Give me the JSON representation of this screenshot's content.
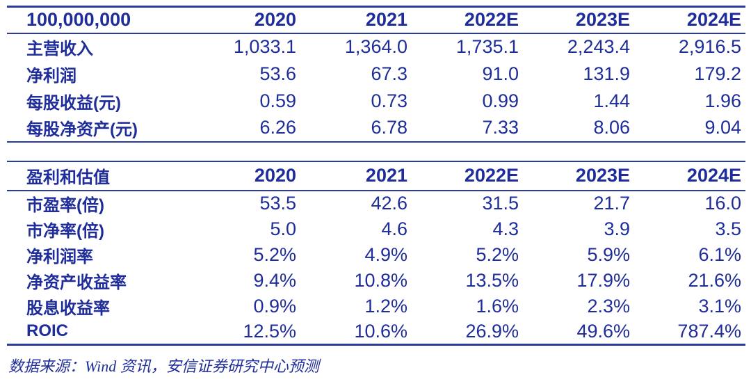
{
  "theme": {
    "text_color": "#1F2D9B",
    "line_color": "#2B3AA0",
    "background_color": "#FFFFFF"
  },
  "tables": [
    {
      "name": "financial-summary-units",
      "unit_label": "100,000,000",
      "header": [
        "100,000,000",
        "2020",
        "2021",
        "2022E",
        "2023E",
        "2024E"
      ],
      "rows": [
        {
          "label": "主营收入",
          "values": [
            "1,033.1",
            "1,364.0",
            "1,735.1",
            "2,243.4",
            "2,916.5"
          ]
        },
        {
          "label": "净利润",
          "values": [
            "53.6",
            "67.3",
            "91.0",
            "131.9",
            "179.2"
          ]
        },
        {
          "label": "每股收益(元)",
          "values": [
            "0.59",
            "0.73",
            "0.99",
            "1.44",
            "1.96"
          ]
        },
        {
          "label": "每股净资产(元)",
          "values": [
            "6.26",
            "6.78",
            "7.33",
            "8.06",
            "9.04"
          ]
        }
      ]
    },
    {
      "name": "profitability-and-valuation",
      "unit_label": "盈利和估值",
      "header": [
        "盈利和估值",
        "2020",
        "2021",
        "2022E",
        "2023E",
        "2024E"
      ],
      "rows": [
        {
          "label": "市盈率(倍)",
          "values": [
            "53.5",
            "42.6",
            "31.5",
            "21.7",
            "16.0"
          ]
        },
        {
          "label": "市净率(倍)",
          "values": [
            "5.0",
            "4.6",
            "4.3",
            "3.9",
            "3.5"
          ]
        },
        {
          "label": "净利润率",
          "values": [
            "5.2%",
            "4.9%",
            "5.2%",
            "5.9%",
            "6.1%"
          ]
        },
        {
          "label": "净资产收益率",
          "values": [
            "9.4%",
            "10.8%",
            "13.5%",
            "17.9%",
            "21.6%"
          ]
        },
        {
          "label": "股息收益率",
          "values": [
            "0.9%",
            "1.2%",
            "1.6%",
            "2.3%",
            "3.1%"
          ]
        },
        {
          "label": "ROIC",
          "values": [
            "12.5%",
            "10.6%",
            "26.9%",
            "49.6%",
            "787.4%"
          ]
        }
      ]
    }
  ],
  "footer": {
    "source_note": "数据来源：Wind 资讯，安信证券研究中心预测"
  }
}
